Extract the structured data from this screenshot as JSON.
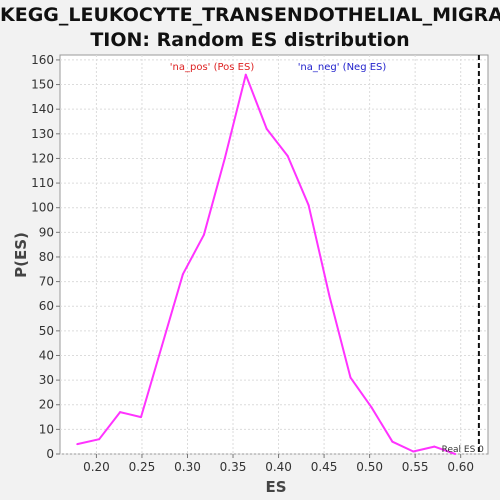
{
  "chart_data": {
    "type": "line",
    "title_lines": [
      "KEGG_LEUKOCYTE_TRANSENDOTHELIAL_MIGRA",
      "TION: Random ES distribution"
    ],
    "xlabel": "ES",
    "ylabel": "P(ES)",
    "xlim": [
      0.16,
      0.63
    ],
    "ylim": [
      0,
      162
    ],
    "x_ticks": [
      0.2,
      0.25,
      0.3,
      0.35,
      0.4,
      0.45,
      0.5,
      0.55,
      0.6
    ],
    "x_tick_labels": [
      "0.20",
      "0.25",
      "0.30",
      "0.35",
      "0.40",
      "0.45",
      "0.50",
      "0.55",
      "0.60"
    ],
    "y_ticks": [
      0,
      10,
      20,
      30,
      40,
      50,
      60,
      70,
      80,
      90,
      100,
      110,
      120,
      130,
      140,
      150,
      160
    ],
    "y_tick_labels": [
      "0",
      "10",
      "20",
      "30",
      "40",
      "50",
      "60",
      "70",
      "80",
      "90",
      "100",
      "110",
      "120",
      "130",
      "140",
      "150",
      "160"
    ],
    "grid": true,
    "series": [
      {
        "color": "#ff33ff",
        "x": [
          0.179,
          0.203,
          0.226,
          0.249,
          0.272,
          0.295,
          0.318,
          0.341,
          0.364,
          0.387,
          0.41,
          0.433,
          0.456,
          0.479,
          0.502,
          0.525,
          0.548,
          0.571,
          0.594
        ],
        "y": [
          4,
          6,
          17,
          15,
          44,
          73,
          89,
          120,
          154,
          132,
          121,
          101,
          64,
          31,
          19,
          5,
          1,
          3,
          0
        ]
      }
    ],
    "legend_labels": [
      {
        "text": "'na_pos' (Pos ES)",
        "color": "#dd2222"
      },
      {
        "text": "'na_neg' (Neg ES)",
        "color": "#2222cc"
      }
    ],
    "real_es": {
      "x": 0.62,
      "label": "Real ES 0"
    }
  }
}
